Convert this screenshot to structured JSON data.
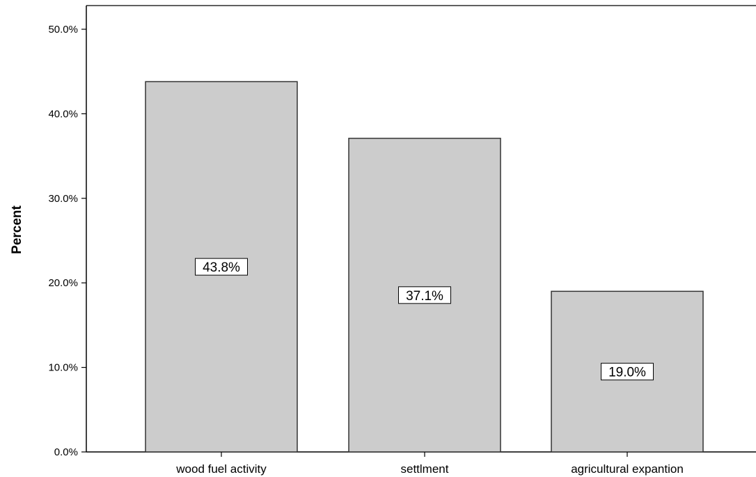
{
  "chart_data": {
    "type": "bar",
    "categories": [
      "wood fuel activity",
      "settlment",
      "agricultural expantion"
    ],
    "values": [
      43.8,
      37.1,
      19.0
    ],
    "data_labels": [
      "43.8%",
      "37.1%",
      "19.0%"
    ],
    "title": "",
    "xlabel": "",
    "ylabel": "Percent",
    "ylim": [
      0,
      52
    ],
    "yticks": [
      0,
      10,
      20,
      30,
      40,
      50
    ],
    "ytick_labels": [
      "0.0%",
      "10.0%",
      "20.0%",
      "30.0%",
      "40.0%",
      "50.0%"
    ],
    "grid": false,
    "legend": "none",
    "colors": {
      "bar_fill": "#cccccc",
      "bar_stroke": "#333333",
      "axis": "#000000",
      "label_box_fill": "#ffffff"
    }
  }
}
